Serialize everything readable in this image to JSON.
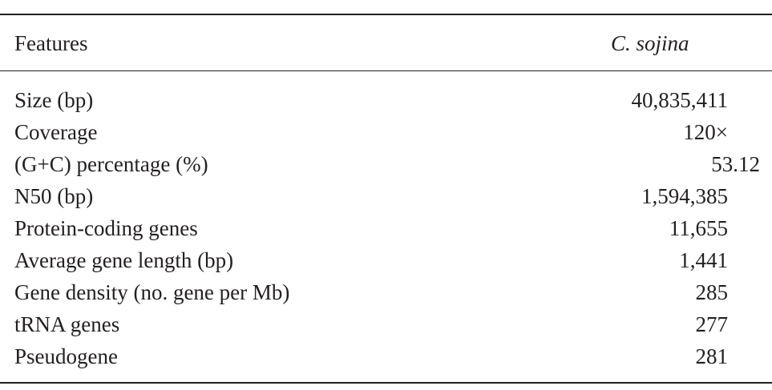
{
  "table": {
    "header": {
      "feature": "Features",
      "species": "C. sojina"
    },
    "rows": [
      {
        "feature": "Size (bp)",
        "value": "40,835,411"
      },
      {
        "feature": "Coverage",
        "value": "120×"
      },
      {
        "feature": "(G+C) percentage (%)",
        "value": "53.12"
      },
      {
        "feature": "N50 (bp)",
        "value": "1,594,385"
      },
      {
        "feature": "Protein-coding genes",
        "value": "11,655"
      },
      {
        "feature": "Average gene length (bp)",
        "value": "1,441"
      },
      {
        "feature": "Gene density (no. gene per Mb)",
        "value": "285"
      },
      {
        "feature": "tRNA genes",
        "value": "277"
      },
      {
        "feature": "Pseudogene",
        "value": "281"
      }
    ]
  }
}
